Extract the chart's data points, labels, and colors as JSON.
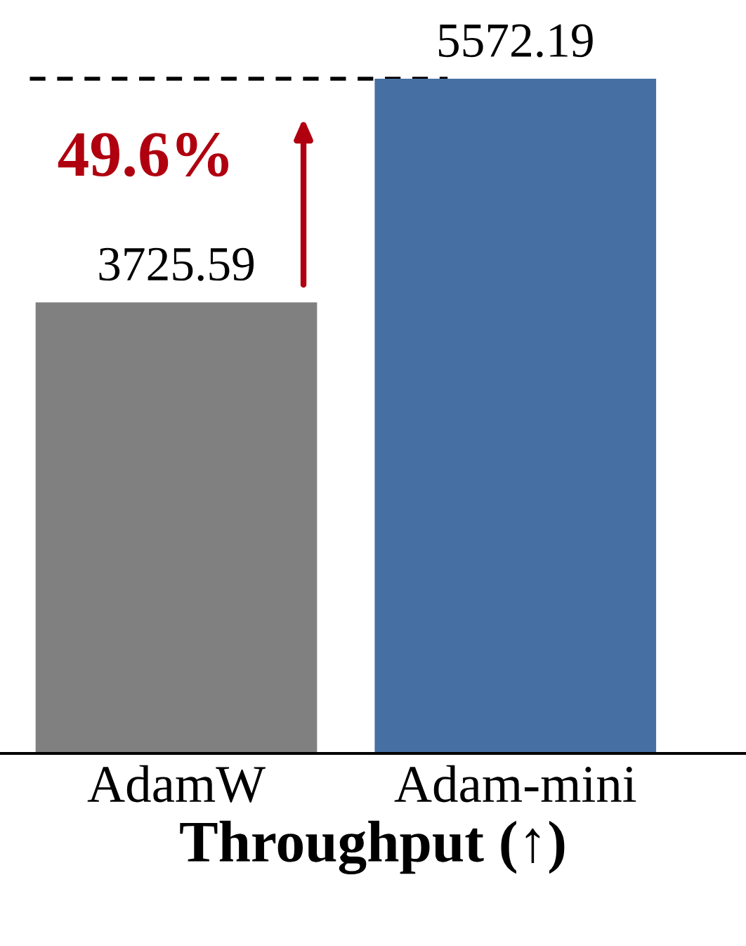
{
  "chart_data": {
    "type": "bar",
    "xlabel": "Throughput (↑)",
    "categories": [
      "AdamW",
      "Adam-mini"
    ],
    "values": [
      3725.59,
      5572.19
    ],
    "colors": [
      "#808080",
      "#4670a3"
    ],
    "data_labels": true,
    "grid": false,
    "legend": false,
    "ref_lines": [
      {
        "axis": "y",
        "value": 5572.19,
        "color": "#000000",
        "line_style": "dashed"
      }
    ],
    "annotations": [
      "49.6%"
    ]
  }
}
